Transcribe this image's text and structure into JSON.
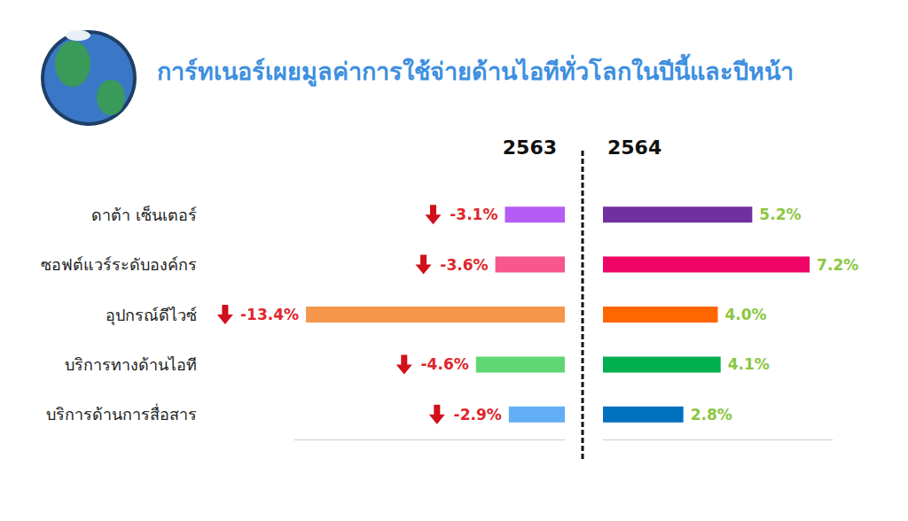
{
  "title": "การ์ทเนอร์เผยมูลค่าการใช้จ่ายด้านไอทีทั่วโลกในปีนี้และปีหน้า",
  "chart_data": [
    {
      "type": "bar",
      "title": "2563",
      "orientation": "horizontal",
      "categories": [
        "ดาต้า เซ็นเตอร์",
        "ซอฟต์แวร์ระดับองค์กร",
        "อุปกรณ์ดีไวซ์",
        "บริการทางด้านไอที",
        "บริการด้านการสื่อสาร"
      ],
      "values": [
        -3.1,
        -3.6,
        -13.4,
        -4.6,
        -2.9
      ],
      "value_labels": [
        "-3.1%",
        "-3.6%",
        "-13.4%",
        "-4.6%",
        "-2.9%"
      ],
      "colors": [
        "#b45cf5",
        "#f7578c",
        "#f5964a",
        "#5fd873",
        "#62aef5"
      ],
      "xlim": [
        -14,
        0
      ],
      "grid": false,
      "data_labels": true,
      "tick_labels": "y"
    },
    {
      "type": "bar",
      "title": "2564",
      "orientation": "horizontal",
      "categories": [
        "ดาต้า เซ็นเตอร์",
        "ซอฟต์แวร์ระดับองค์กร",
        "อุปกรณ์ดีไวซ์",
        "บริการทางด้านไอที",
        "บริการด้านการสื่อสาร"
      ],
      "values": [
        5.2,
        7.2,
        4.0,
        4.1,
        2.8
      ],
      "value_labels": [
        "5.2%",
        "7.2%",
        "4.0%",
        "4.1%",
        "2.8%"
      ],
      "colors": [
        "#7030a0",
        "#ef0565",
        "#ff6600",
        "#00b050",
        "#0070c0"
      ],
      "xlim": [
        0,
        8
      ],
      "grid": false,
      "data_labels": true,
      "tick_labels": false
    }
  ]
}
